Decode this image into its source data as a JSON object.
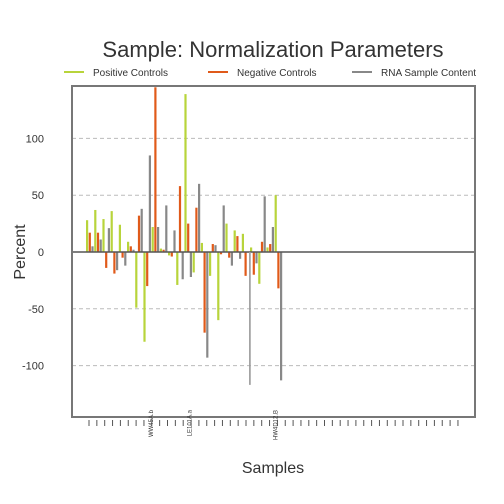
{
  "chart_data": {
    "type": "bar",
    "title": "Sample: Normalization Parameters",
    "xlabel": "Samples",
    "ylabel": "Percent",
    "ylim": [
      -147,
      145
    ],
    "yticks": [
      100,
      50,
      0,
      -50,
      -100
    ],
    "ytick_labels": [
      "100",
      "50",
      "0",
      "-50",
      "-100"
    ],
    "grid": "dashed horizontal at major ticks",
    "legend_position": "top",
    "reference_lines": [
      {
        "axis": "x",
        "value": 19.5,
        "style": "solid gray"
      }
    ],
    "sample_labels": [
      {
        "index": 15,
        "text": "WW45A.b"
      },
      {
        "index": 24,
        "text": "LE101A.a"
      },
      {
        "index": 44,
        "text": "HW4D12.B"
      }
    ],
    "x_tick_count": 48,
    "series": [
      {
        "name": "Positive Controls",
        "color": "#b8d43b",
        "points": [
          {
            "x": 0,
            "y": 28
          },
          {
            "x": 1,
            "y": 37
          },
          {
            "x": 2,
            "y": 29
          },
          {
            "x": 3,
            "y": 36
          },
          {
            "x": 4,
            "y": 24
          },
          {
            "x": 5,
            "y": 9
          },
          {
            "x": 6,
            "y": -49
          },
          {
            "x": 7,
            "y": -79
          },
          {
            "x": 8,
            "y": 22
          },
          {
            "x": 9,
            "y": 3
          },
          {
            "x": 10,
            "y": -3
          },
          {
            "x": 11,
            "y": -29
          },
          {
            "x": 12,
            "y": 139
          },
          {
            "x": 13,
            "y": -18
          },
          {
            "x": 14,
            "y": 8
          },
          {
            "x": 15,
            "y": -21
          },
          {
            "x": 16,
            "y": -60
          },
          {
            "x": 17,
            "y": 25
          },
          {
            "x": 18,
            "y": 19
          },
          {
            "x": 19,
            "y": 16
          },
          {
            "x": 20,
            "y": 4
          },
          {
            "x": 21,
            "y": -28
          },
          {
            "x": 22,
            "y": 4
          },
          {
            "x": 23,
            "y": 50
          }
        ]
      },
      {
        "name": "Negative Controls",
        "color": "#e05a1a",
        "points": [
          {
            "x": 0,
            "y": 17
          },
          {
            "x": 1,
            "y": 17
          },
          {
            "x": 2,
            "y": -14
          },
          {
            "x": 3,
            "y": -19
          },
          {
            "x": 4,
            "y": -5
          },
          {
            "x": 5,
            "y": 5
          },
          {
            "x": 6,
            "y": 32
          },
          {
            "x": 7,
            "y": -30
          },
          {
            "x": 8,
            "y": 145
          },
          {
            "x": 9,
            "y": 2
          },
          {
            "x": 10,
            "y": -4
          },
          {
            "x": 11,
            "y": 58
          },
          {
            "x": 12,
            "y": 25
          },
          {
            "x": 13,
            "y": 39
          },
          {
            "x": 14,
            "y": -71
          },
          {
            "x": 15,
            "y": 7
          },
          {
            "x": 16,
            "y": -2
          },
          {
            "x": 17,
            "y": -5
          },
          {
            "x": 18,
            "y": 14
          },
          {
            "x": 19,
            "y": -21
          },
          {
            "x": 20,
            "y": -20
          },
          {
            "x": 21,
            "y": 9
          },
          {
            "x": 22,
            "y": 7
          },
          {
            "x": 23,
            "y": -32
          }
        ]
      },
      {
        "name": "RNA Sample Content",
        "color": "#888888",
        "points": [
          {
            "x": 0,
            "y": 5
          },
          {
            "x": 1,
            "y": 11
          },
          {
            "x": 2,
            "y": 21
          },
          {
            "x": 3,
            "y": -16
          },
          {
            "x": 4,
            "y": -12
          },
          {
            "x": 5,
            "y": 2
          },
          {
            "x": 6,
            "y": 38
          },
          {
            "x": 7,
            "y": 85
          },
          {
            "x": 8,
            "y": 22
          },
          {
            "x": 9,
            "y": 41
          },
          {
            "x": 10,
            "y": 19
          },
          {
            "x": 11,
            "y": -24
          },
          {
            "x": 12,
            "y": -22
          },
          {
            "x": 13,
            "y": 60
          },
          {
            "x": 14,
            "y": -93
          },
          {
            "x": 15,
            "y": 6
          },
          {
            "x": 16,
            "y": 41
          },
          {
            "x": 17,
            "y": -12
          },
          {
            "x": 18,
            "y": -6
          },
          {
            "x": 19,
            "y": 0
          },
          {
            "x": 20,
            "y": -10
          },
          {
            "x": 21,
            "y": 49
          },
          {
            "x": 22,
            "y": 22
          },
          {
            "x": 23,
            "y": -113
          }
        ]
      }
    ]
  }
}
